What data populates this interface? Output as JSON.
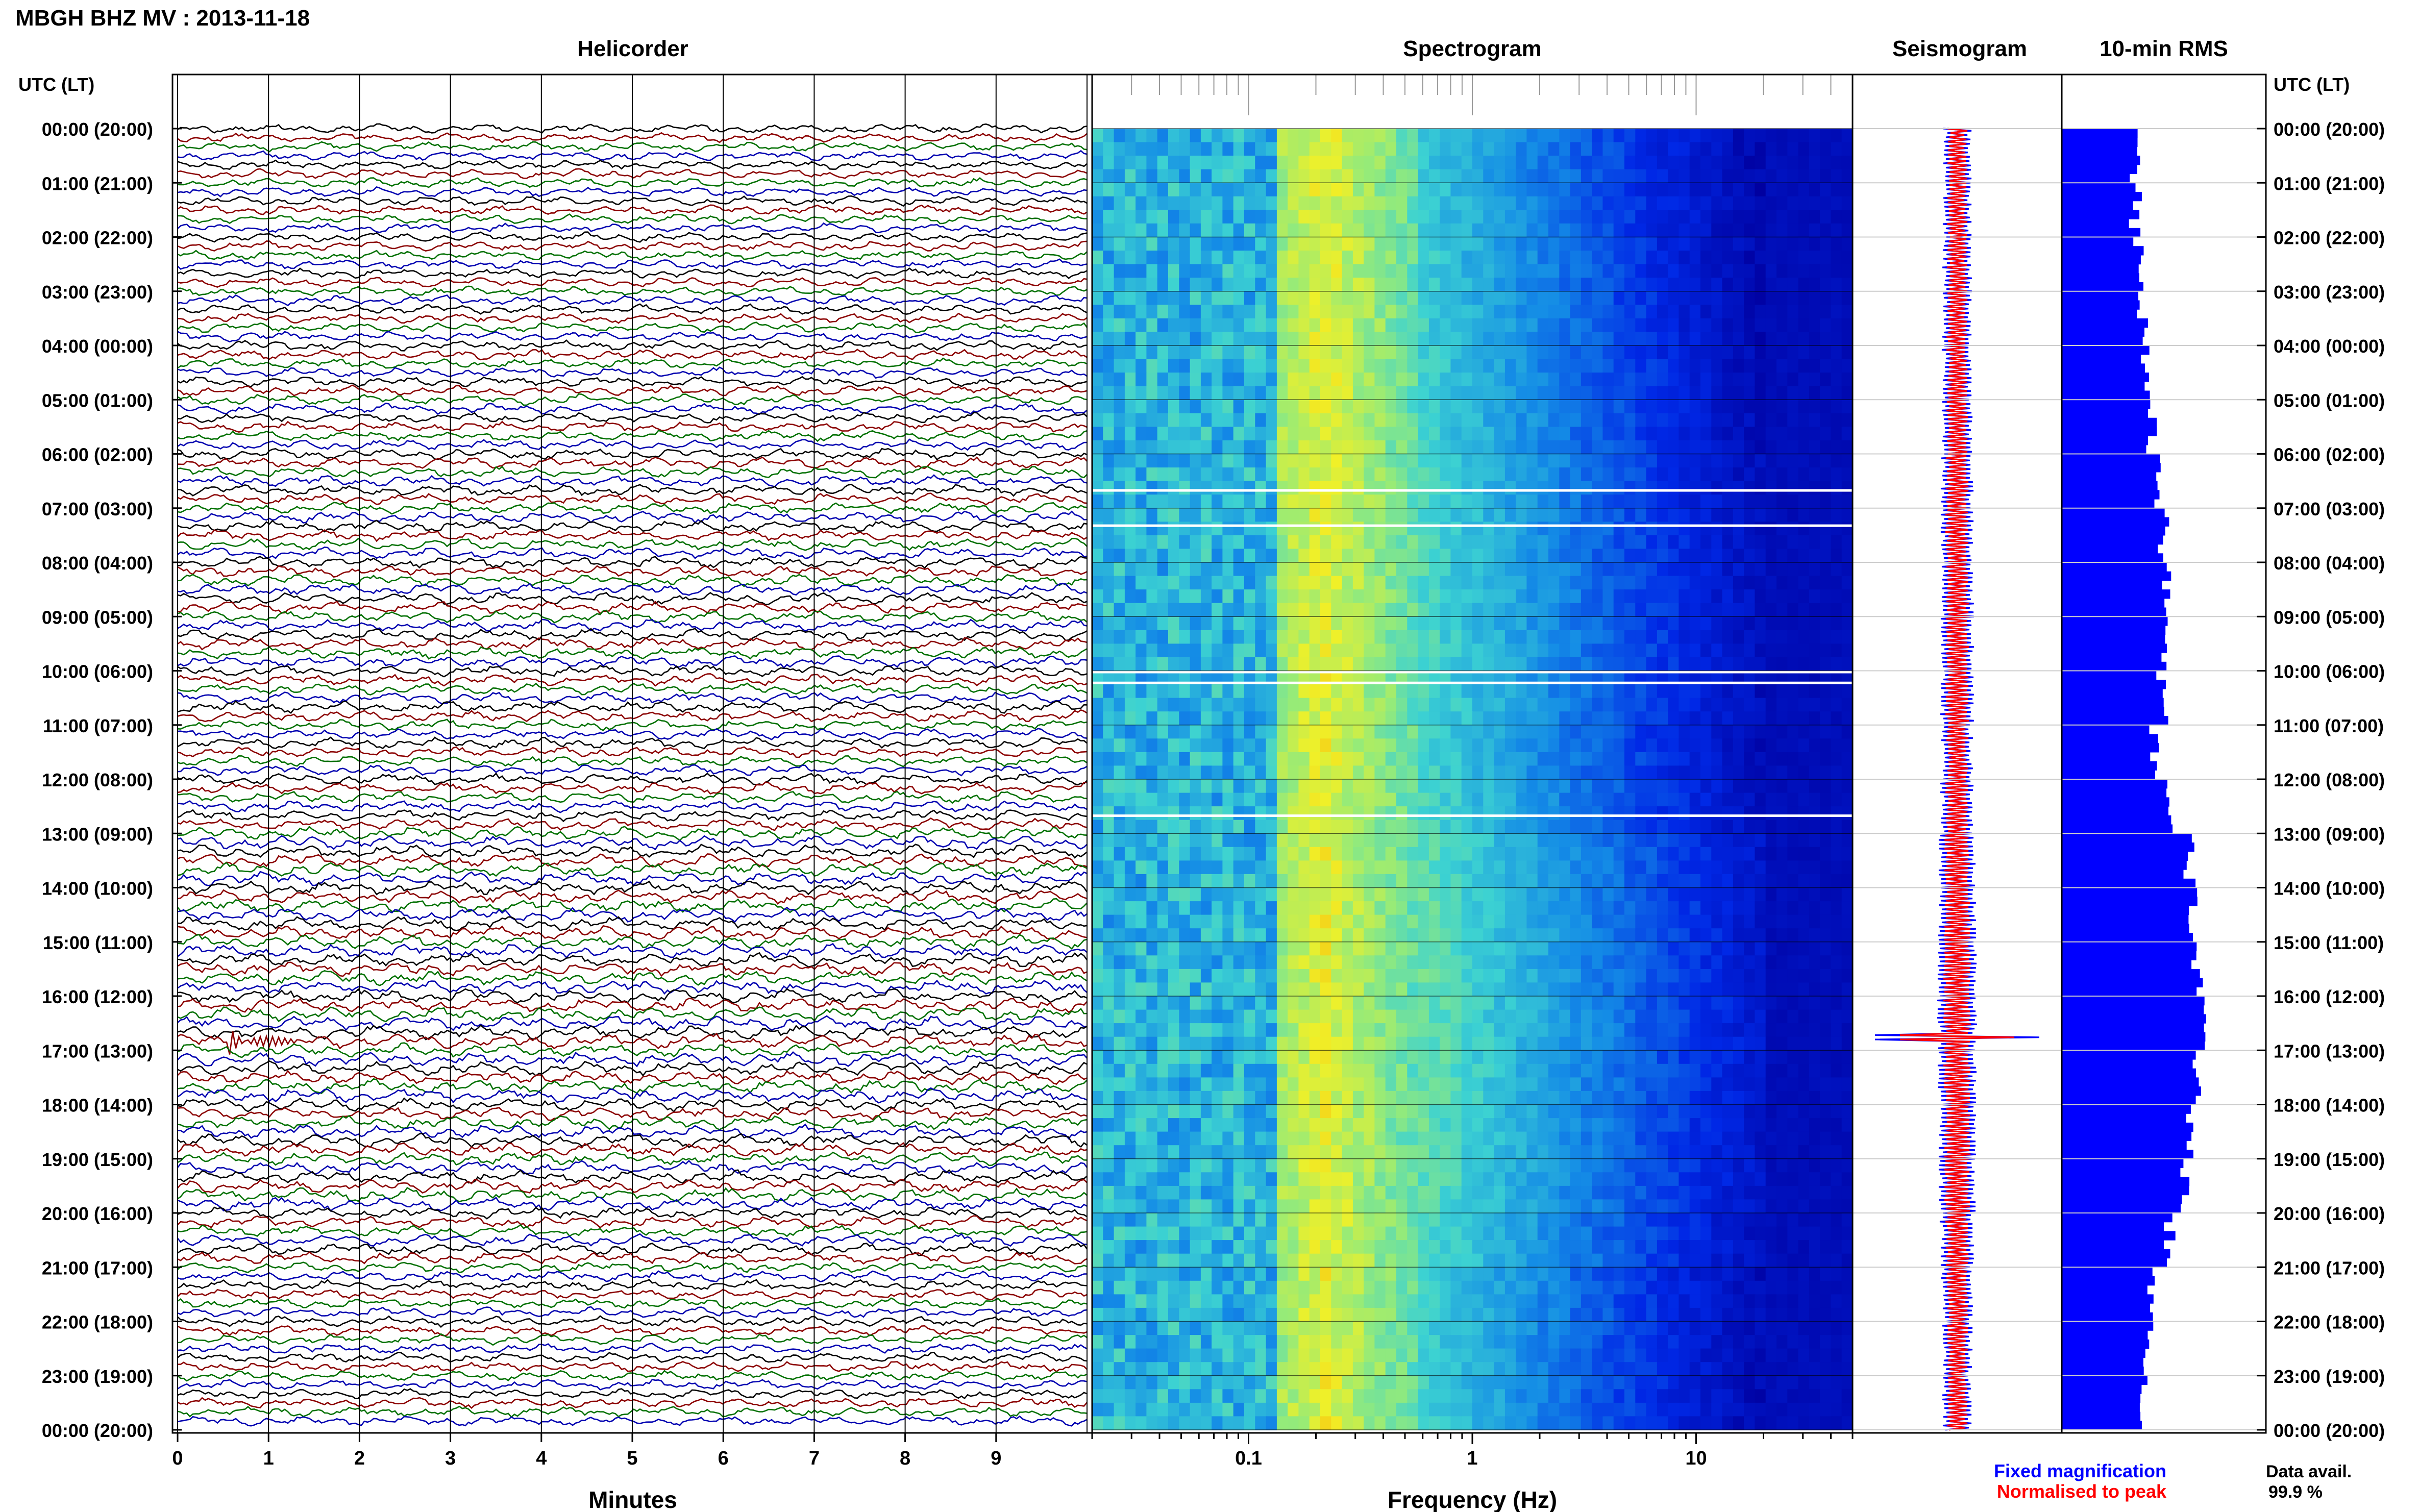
{
  "title": "MBGH BHZ MV : 2013-11-18",
  "time_axis_label": "UTC (LT)",
  "time_labels": [
    "00:00 (20:00)",
    "01:00 (21:00)",
    "02:00 (22:00)",
    "03:00 (23:00)",
    "04:00 (00:00)",
    "05:00 (01:00)",
    "06:00 (02:00)",
    "07:00 (03:00)",
    "08:00 (04:00)",
    "09:00 (05:00)",
    "10:00 (06:00)",
    "11:00 (07:00)",
    "12:00 (08:00)",
    "13:00 (09:00)",
    "14:00 (10:00)",
    "15:00 (11:00)",
    "16:00 (12:00)",
    "17:00 (13:00)",
    "18:00 (14:00)",
    "19:00 (15:00)",
    "20:00 (16:00)",
    "21:00 (17:00)",
    "22:00 (18:00)",
    "23:00 (19:00)",
    "00:00 (20:00)"
  ],
  "panels": {
    "helicorder": {
      "title": "Helicorder",
      "xlabel": "Minutes",
      "ticks": [
        "0",
        "1",
        "2",
        "3",
        "4",
        "5",
        "6",
        "7",
        "8",
        "9"
      ]
    },
    "spectrogram": {
      "title": "Spectrogram",
      "xlabel": "Frequency (Hz)",
      "ticks": [
        "0.1",
        "1",
        "10"
      ]
    },
    "seismogram": {
      "title": "Seismogram"
    },
    "rms": {
      "title": "10-min RMS"
    }
  },
  "legend": {
    "fixed": "Fixed magnification",
    "normalised": "Normalised to peak"
  },
  "data_avail": {
    "label": "Data avail.",
    "value": "99.9 %"
  },
  "colors": {
    "trace_cycle": [
      "#000000",
      "#8b0000",
      "#007000",
      "#0000b0"
    ],
    "rms_bar": "#0000ff",
    "normalised": "#ff0000",
    "fixed": "#0000ff"
  },
  "chart_data": [
    {
      "type": "line",
      "name": "helicorder",
      "x_range": [
        0,
        10
      ],
      "x_unit": "minutes",
      "rows_per_hour": 6,
      "hours": 24
    },
    {
      "type": "heatmap",
      "name": "spectrogram",
      "x_scale": "log",
      "x_range": [
        0.02,
        50
      ],
      "x_unit": "Hz"
    },
    {
      "type": "bar",
      "name": "10-min RMS",
      "rms_hourly_relative": [
        0.38,
        0.38,
        0.4,
        0.42,
        0.44,
        0.46,
        0.5,
        0.52,
        0.54,
        0.54,
        0.52,
        0.48,
        0.54,
        0.66,
        0.68,
        0.7,
        0.72,
        0.7,
        0.66,
        0.64,
        0.56,
        0.46,
        0.44,
        0.42
      ]
    }
  ]
}
